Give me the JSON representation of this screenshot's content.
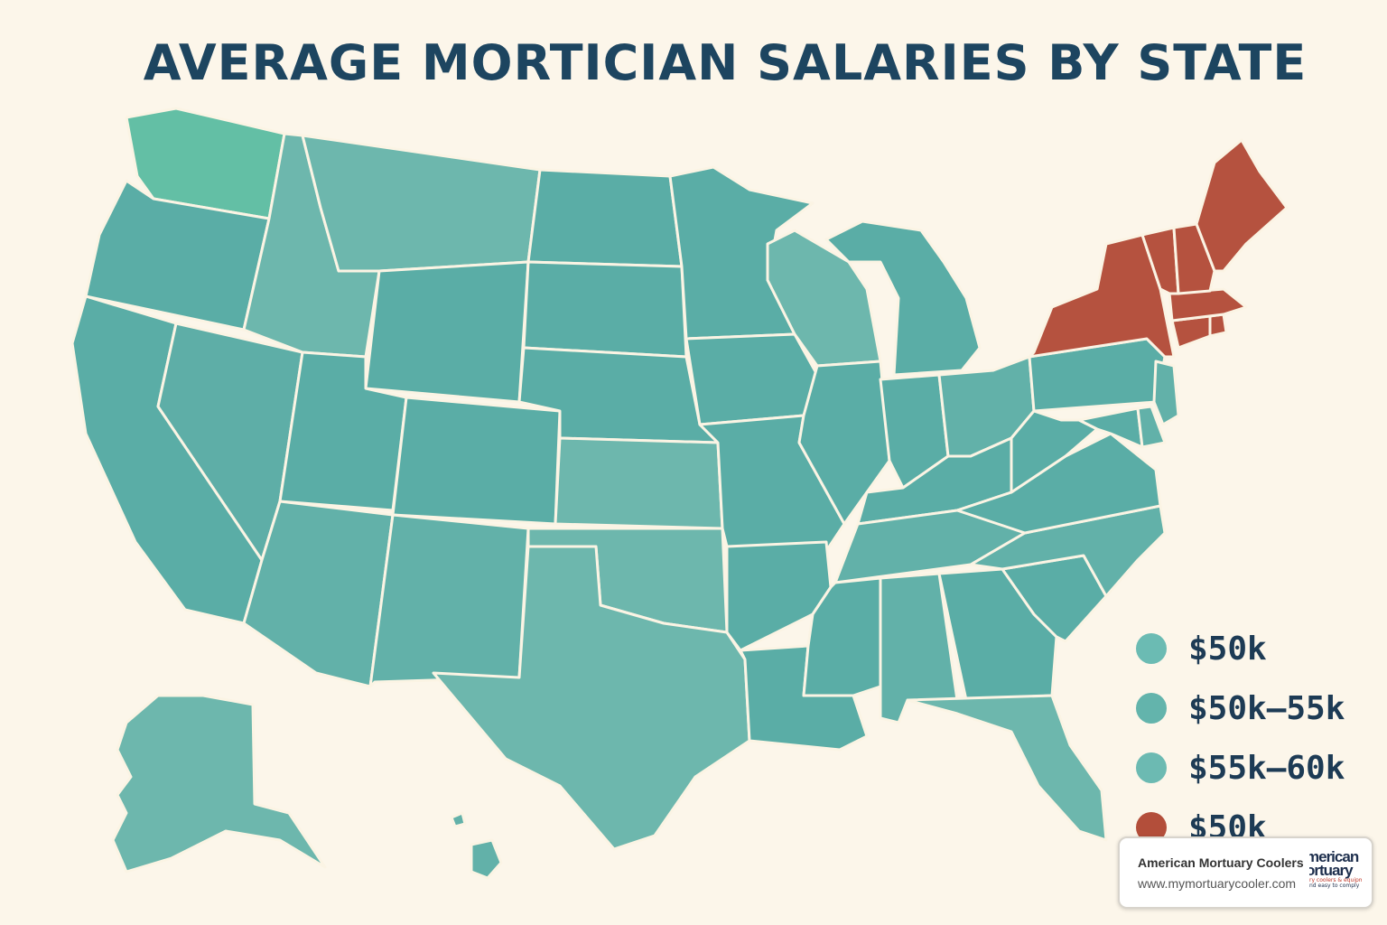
{
  "title": "AVERAGE MORTICIAN SALARIES BY STATE",
  "colors": {
    "background": "#fcf6ea",
    "title": "#1d4560",
    "teal_dark": "#5aada6",
    "teal_mid": "#62b1a9",
    "teal_light": "#6db7ad",
    "teal_bright": "#63bfa5",
    "red": "#b5523f",
    "border": "#fbf4e4"
  },
  "legend": [
    {
      "label": "$50k",
      "color": "#6bbbb3"
    },
    {
      "label": "$50k–55k",
      "color": "#63b4ac"
    },
    {
      "label": "$55k–60k",
      "color": "#6cbab2"
    },
    {
      "label": "$50k",
      "color": "#b34e3a"
    }
  ],
  "badge": {
    "name": "American Mortuary Coolers",
    "url": "www.mymortuarycooler.com",
    "logo_line1": "merican",
    "logo_line2": "ortuary",
    "logo_line3": "ry coolers & equipme",
    "logo_line4": "nd easy to comply"
  },
  "states": [
    {
      "name": "Washington",
      "color": "#63bfa5"
    },
    {
      "name": "Oregon",
      "color": "#5aada6"
    },
    {
      "name": "California",
      "color": "#5aada6"
    },
    {
      "name": "Nevada",
      "color": "#5eaea7"
    },
    {
      "name": "Idaho",
      "color": "#6db7ad"
    },
    {
      "name": "Montana",
      "color": "#6db7ad"
    },
    {
      "name": "Wyoming",
      "color": "#5aada6"
    },
    {
      "name": "Utah",
      "color": "#5aada6"
    },
    {
      "name": "Colorado",
      "color": "#5aada6"
    },
    {
      "name": "Arizona",
      "color": "#62b1a9"
    },
    {
      "name": "New Mexico",
      "color": "#62b1a9"
    },
    {
      "name": "North Dakota",
      "color": "#5aada6"
    },
    {
      "name": "South Dakota",
      "color": "#5aada6"
    },
    {
      "name": "Nebraska",
      "color": "#5aada6"
    },
    {
      "name": "Kansas",
      "color": "#6db7ad"
    },
    {
      "name": "Oklahoma",
      "color": "#6db7ad"
    },
    {
      "name": "Texas",
      "color": "#6db7ad"
    },
    {
      "name": "Minnesota",
      "color": "#5aada6"
    },
    {
      "name": "Iowa",
      "color": "#5aada6"
    },
    {
      "name": "Missouri",
      "color": "#5aada6"
    },
    {
      "name": "Arkansas",
      "color": "#5aada6"
    },
    {
      "name": "Louisiana",
      "color": "#5aada6"
    },
    {
      "name": "Wisconsin",
      "color": "#6db7ad"
    },
    {
      "name": "Illinois",
      "color": "#5aada6"
    },
    {
      "name": "Michigan",
      "color": "#5aada6"
    },
    {
      "name": "Indiana",
      "color": "#5aada6"
    },
    {
      "name": "Ohio",
      "color": "#62b1a9"
    },
    {
      "name": "Kentucky",
      "color": "#5aada6"
    },
    {
      "name": "Tennessee",
      "color": "#62b1a9"
    },
    {
      "name": "Mississippi",
      "color": "#5aada6"
    },
    {
      "name": "Alabama",
      "color": "#62b1a9"
    },
    {
      "name": "Georgia",
      "color": "#5aada6"
    },
    {
      "name": "Florida",
      "color": "#6db7ad"
    },
    {
      "name": "South Carolina",
      "color": "#5aada6"
    },
    {
      "name": "North Carolina",
      "color": "#62b1a9"
    },
    {
      "name": "Virginia",
      "color": "#5aada6"
    },
    {
      "name": "West Virginia",
      "color": "#5aada6"
    },
    {
      "name": "Pennsylvania",
      "color": "#5aada6"
    },
    {
      "name": "Maryland",
      "color": "#5aada6"
    },
    {
      "name": "Delaware",
      "color": "#62b1a9"
    },
    {
      "name": "New Jersey",
      "color": "#62b1a9"
    },
    {
      "name": "New York",
      "color": "#b5523f"
    },
    {
      "name": "Connecticut",
      "color": "#b5523f"
    },
    {
      "name": "Rhode Island",
      "color": "#b5523f"
    },
    {
      "name": "Massachusetts",
      "color": "#b5523f"
    },
    {
      "name": "Vermont",
      "color": "#b5523f"
    },
    {
      "name": "New Hampshire",
      "color": "#b5523f"
    },
    {
      "name": "Maine",
      "color": "#b5523f"
    },
    {
      "name": "Alaska",
      "color": "#6db7ad"
    },
    {
      "name": "Hawaii",
      "color": "#62b1a9"
    }
  ]
}
